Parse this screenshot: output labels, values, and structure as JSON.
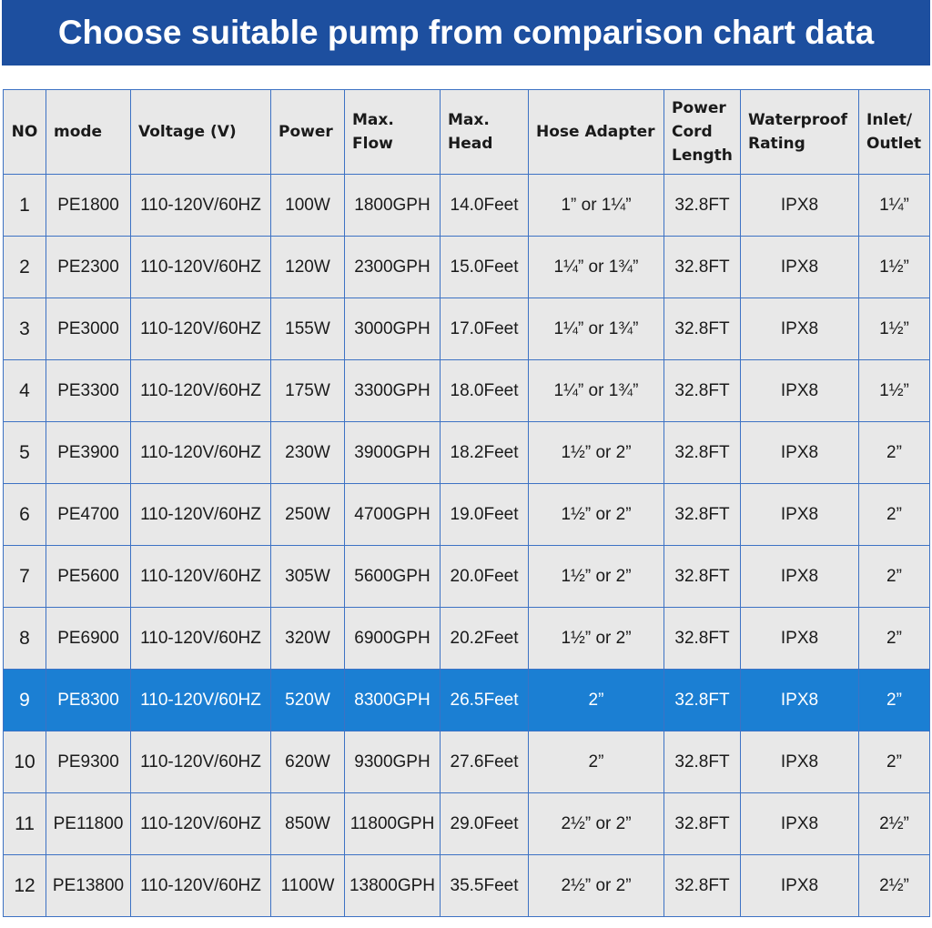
{
  "header": {
    "title": "Choose suitable pump from comparison chart data"
  },
  "table": {
    "columns": [
      [
        "NO"
      ],
      [
        "mode"
      ],
      [
        "Voltage (V)"
      ],
      [
        "Power"
      ],
      [
        "Max.",
        "Flow"
      ],
      [
        "Max.",
        "Head"
      ],
      [
        "Hose Adapter"
      ],
      [
        "Power",
        "Cord",
        "Length"
      ],
      [
        "Waterproof",
        "Rating"
      ],
      [
        "Inlet/",
        "Outlet"
      ]
    ],
    "rows": [
      [
        "1",
        "PE1800",
        "110-120V/60HZ",
        "100W",
        "1800GPH",
        "14.0Feet",
        "1” or 1¼”",
        "32.8FT",
        "IPX8",
        "1¼”"
      ],
      [
        "2",
        "PE2300",
        "110-120V/60HZ",
        "120W",
        "2300GPH",
        "15.0Feet",
        "1¼” or 1¾”",
        "32.8FT",
        "IPX8",
        "1½”"
      ],
      [
        "3",
        "PE3000",
        "110-120V/60HZ",
        "155W",
        "3000GPH",
        "17.0Feet",
        "1¼” or 1¾”",
        "32.8FT",
        "IPX8",
        "1½”"
      ],
      [
        "4",
        "PE3300",
        "110-120V/60HZ",
        "175W",
        "3300GPH",
        "18.0Feet",
        "1¼” or 1¾”",
        "32.8FT",
        "IPX8",
        "1½”"
      ],
      [
        "5",
        "PE3900",
        "110-120V/60HZ",
        "230W",
        "3900GPH",
        "18.2Feet",
        "1½” or 2”",
        "32.8FT",
        "IPX8",
        "2”"
      ],
      [
        "6",
        "PE4700",
        "110-120V/60HZ",
        "250W",
        "4700GPH",
        "19.0Feet",
        "1½” or 2”",
        "32.8FT",
        "IPX8",
        "2”"
      ],
      [
        "7",
        "PE5600",
        "110-120V/60HZ",
        "305W",
        "5600GPH",
        "20.0Feet",
        "1½” or 2”",
        "32.8FT",
        "IPX8",
        "2”"
      ],
      [
        "8",
        "PE6900",
        "110-120V/60HZ",
        "320W",
        "6900GPH",
        "20.2Feet",
        "1½” or 2”",
        "32.8FT",
        "IPX8",
        "2”"
      ],
      [
        "9",
        "PE8300",
        "110-120V/60HZ",
        "520W",
        "8300GPH",
        "26.5Feet",
        "2”",
        "32.8FT",
        "IPX8",
        "2”"
      ],
      [
        "10",
        "PE9300",
        "110-120V/60HZ",
        "620W",
        "9300GPH",
        "27.6Feet",
        "2”",
        "32.8FT",
        "IPX8",
        "2”"
      ],
      [
        "11",
        "PE11800",
        "110-120V/60HZ",
        "850W",
        "11800GPH",
        "29.0Feet",
        "2½” or 2”",
        "32.8FT",
        "IPX8",
        "2½”"
      ],
      [
        "12",
        "PE13800",
        "110-120V/60HZ",
        "1100W",
        "13800GPH",
        "35.5Feet",
        "2½” or 2”",
        "32.8FT",
        "IPX8",
        "2½”"
      ]
    ],
    "highlighted_rows": [
      "9"
    ],
    "highlight_color": "#1b7fd3"
  }
}
